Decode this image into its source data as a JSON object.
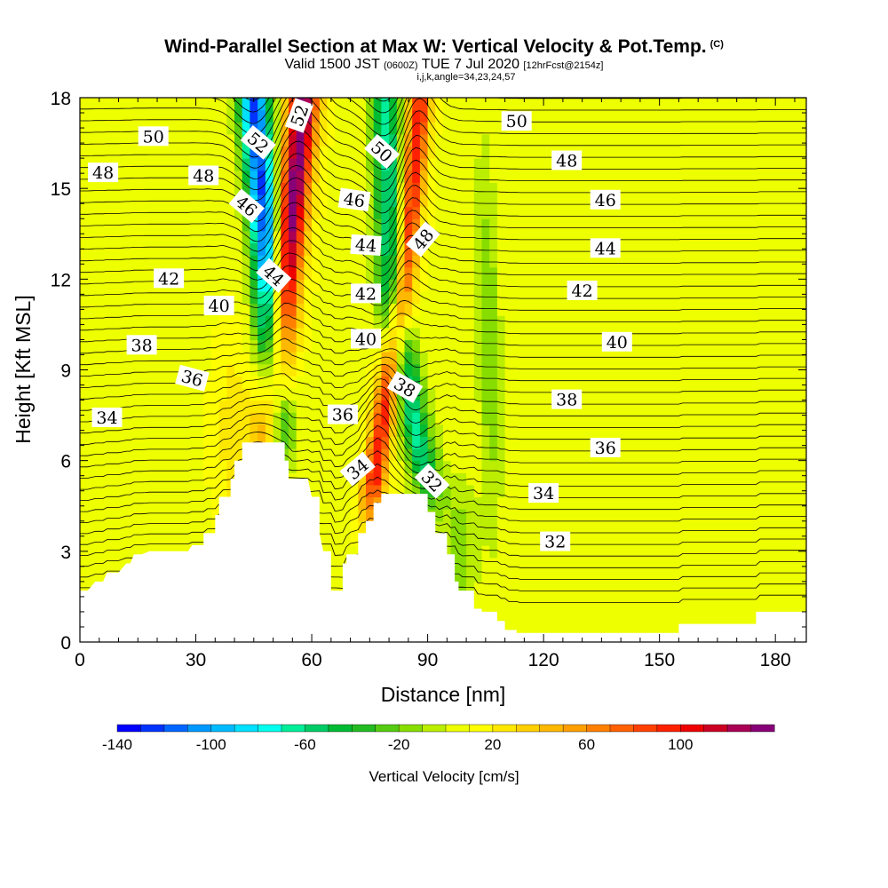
{
  "header": {
    "title": "Wind-Parallel Section at Max W: Vertical Velocity & Pot.Temp.",
    "copyright": "(C)",
    "valid_prefix": "Valid 1500 JST",
    "valid_utc": "(0600Z)",
    "valid_date": "TUE 7 Jul 2020",
    "forecast": "[12hrFcst@2154z]",
    "indices": "i,j,k,angle=34,23,24,57"
  },
  "chart_data": {
    "type": "heatmap",
    "xlabel": "Distance [nm]",
    "ylabel": "Height [Kft MSL]",
    "xlim": [
      0,
      188
    ],
    "ylim": [
      0,
      18
    ],
    "xticks": [
      0,
      30,
      60,
      90,
      120,
      150,
      180
    ],
    "yticks": [
      0,
      3,
      6,
      9,
      12,
      15,
      18
    ],
    "colorbar": {
      "title": "Vertical Velocity [cm/s]",
      "range": [
        -140,
        140
      ],
      "step": 10,
      "tick_labels": [
        "-140",
        "-100",
        "-60",
        "-20",
        "20",
        "60",
        "100"
      ],
      "tick_values": [
        -140,
        -100,
        -60,
        -20,
        20,
        60,
        100
      ],
      "colors": [
        "#0000ff",
        "#0033ff",
        "#0066ff",
        "#0099ff",
        "#00bbff",
        "#00e0ff",
        "#00ffee",
        "#00ee99",
        "#00cc66",
        "#00bb33",
        "#22bb22",
        "#55cc11",
        "#88dd00",
        "#bbee00",
        "#eeff00",
        "#ffff00",
        "#ffe800",
        "#ffd000",
        "#ffb800",
        "#ffa000",
        "#ff8000",
        "#ff6000",
        "#ff4000",
        "#ff2000",
        "#ee0000",
        "#cc0022",
        "#aa0055",
        "#880077"
      ]
    },
    "terrain": [
      [
        0,
        1.7
      ],
      [
        2,
        1.7
      ],
      [
        4,
        2
      ],
      [
        6,
        2
      ],
      [
        7,
        2.3
      ],
      [
        10,
        2.3
      ],
      [
        12,
        2.6
      ],
      [
        13,
        2.6
      ],
      [
        14,
        2.9
      ],
      [
        16,
        2.9
      ],
      [
        18,
        3
      ],
      [
        28,
        3
      ],
      [
        29,
        3.2
      ],
      [
        32,
        3.2
      ],
      [
        32,
        3.6
      ],
      [
        35,
        3.6
      ],
      [
        35,
        4.2
      ],
      [
        36,
        4.2
      ],
      [
        36,
        4.8
      ],
      [
        39,
        4.8
      ],
      [
        39,
        5.4
      ],
      [
        40,
        5.4
      ],
      [
        40,
        6
      ],
      [
        42,
        6
      ],
      [
        42,
        6.6
      ],
      [
        53,
        6.6
      ],
      [
        53,
        6
      ],
      [
        54,
        6
      ],
      [
        54,
        5.4
      ],
      [
        59,
        5.4
      ],
      [
        60,
        4.8
      ],
      [
        62,
        4.8
      ],
      [
        62,
        3.6
      ],
      [
        63,
        3
      ],
      [
        65,
        3
      ],
      [
        65,
        1.7
      ],
      [
        68,
        1.7
      ],
      [
        68,
        2.6
      ],
      [
        69,
        2.6
      ],
      [
        69,
        2.9
      ],
      [
        72,
        2.9
      ],
      [
        72,
        3.6
      ],
      [
        74,
        3.6
      ],
      [
        74,
        4
      ],
      [
        76,
        4
      ],
      [
        76,
        4.6
      ],
      [
        78,
        4.6
      ],
      [
        78,
        4.9
      ],
      [
        81,
        4.9
      ],
      [
        81,
        4.9
      ],
      [
        90,
        4.9
      ],
      [
        90,
        4.3
      ],
      [
        92,
        4.3
      ],
      [
        92,
        3.6
      ],
      [
        95,
        3.6
      ],
      [
        95,
        2.9
      ],
      [
        97,
        2.9
      ],
      [
        97,
        2
      ],
      [
        98,
        2
      ],
      [
        98,
        1.7
      ],
      [
        102,
        1.7
      ],
      [
        102,
        1.1
      ],
      [
        104,
        1.1
      ],
      [
        104,
        1
      ],
      [
        108,
        1
      ],
      [
        108,
        0.7
      ],
      [
        110,
        0.7
      ],
      [
        110,
        0.4
      ],
      [
        113,
        0.4
      ],
      [
        113,
        0.3
      ],
      [
        155,
        0.3
      ],
      [
        155,
        0.6
      ],
      [
        175,
        0.6
      ],
      [
        175,
        1
      ],
      [
        188,
        1
      ]
    ],
    "theta_contours": {
      "levels_k": [
        32,
        34,
        36,
        38,
        40,
        42,
        44,
        46,
        48,
        50,
        52
      ],
      "labels": [
        {
          "text": "50",
          "x": 19,
          "y": 16.7,
          "angle": 0
        },
        {
          "text": "48",
          "x": 6,
          "y": 15.5,
          "angle": 0
        },
        {
          "text": "48",
          "x": 32,
          "y": 15.4,
          "angle": 0
        },
        {
          "text": "52",
          "x": 46,
          "y": 16.5,
          "angle": 40
        },
        {
          "text": "52",
          "x": 57,
          "y": 17.4,
          "angle": -70
        },
        {
          "text": "50",
          "x": 78,
          "y": 16.2,
          "angle": 42
        },
        {
          "text": "50",
          "x": 113,
          "y": 17.2,
          "angle": 0
        },
        {
          "text": "48",
          "x": 126,
          "y": 15.9,
          "angle": 0
        },
        {
          "text": "46",
          "x": 43,
          "y": 14.4,
          "angle": 40
        },
        {
          "text": "46",
          "x": 71,
          "y": 14.6,
          "angle": 8
        },
        {
          "text": "46",
          "x": 136,
          "y": 14.6,
          "angle": 0
        },
        {
          "text": "44",
          "x": 50,
          "y": 12.1,
          "angle": 42
        },
        {
          "text": "44",
          "x": 74,
          "y": 13.1,
          "angle": 4
        },
        {
          "text": "48",
          "x": 89,
          "y": 13.3,
          "angle": -50
        },
        {
          "text": "44",
          "x": 136,
          "y": 13.0,
          "angle": 0
        },
        {
          "text": "42",
          "x": 23,
          "y": 12.0,
          "angle": 0
        },
        {
          "text": "42",
          "x": 74,
          "y": 11.5,
          "angle": 0
        },
        {
          "text": "42",
          "x": 130,
          "y": 11.6,
          "angle": 0
        },
        {
          "text": "40",
          "x": 36,
          "y": 11.1,
          "angle": 0
        },
        {
          "text": "40",
          "x": 74,
          "y": 10.0,
          "angle": 0
        },
        {
          "text": "40",
          "x": 139,
          "y": 9.9,
          "angle": 0
        },
        {
          "text": "38",
          "x": 16,
          "y": 9.8,
          "angle": 0
        },
        {
          "text": "38",
          "x": 84,
          "y": 8.4,
          "angle": 30
        },
        {
          "text": "38",
          "x": 126,
          "y": 8.0,
          "angle": 0
        },
        {
          "text": "36",
          "x": 29,
          "y": 8.7,
          "angle": 15
        },
        {
          "text": "36",
          "x": 68,
          "y": 7.5,
          "angle": 0
        },
        {
          "text": "36",
          "x": 136,
          "y": 6.4,
          "angle": 0
        },
        {
          "text": "34",
          "x": 7,
          "y": 7.4,
          "angle": 0
        },
        {
          "text": "34",
          "x": 72,
          "y": 5.7,
          "angle": -40
        },
        {
          "text": "32",
          "x": 91,
          "y": 5.3,
          "angle": 45
        },
        {
          "text": "34",
          "x": 120,
          "y": 4.9,
          "angle": 0
        },
        {
          "text": "32",
          "x": 123,
          "y": 3.3,
          "angle": 0
        }
      ]
    },
    "velocity_features": [
      {
        "kind": "updraft",
        "name": "core-1",
        "peak_cm_s": 130,
        "x_center_at": [
          [
            49,
            6.6
          ],
          [
            53,
            12
          ],
          [
            58,
            18
          ]
        ],
        "width_nm": 4
      },
      {
        "kind": "downdraft",
        "name": "core-1",
        "peak_cm_s": -130,
        "x_center_at": [
          [
            51,
            6.6
          ],
          [
            49,
            12
          ],
          [
            45,
            18
          ]
        ],
        "width_nm": 4
      },
      {
        "kind": "updraft",
        "name": "core-2",
        "peak_cm_s": 90,
        "x_center_at": [
          [
            75,
            4.4
          ],
          [
            84,
            12
          ],
          [
            88,
            18
          ]
        ],
        "width_nm": 3
      },
      {
        "kind": "downdraft",
        "name": "core-2",
        "peak_cm_s": -70,
        "x_center_at": [
          [
            90,
            5
          ],
          [
            81,
            11
          ],
          [
            79,
            18
          ]
        ],
        "width_nm": 4
      }
    ]
  }
}
